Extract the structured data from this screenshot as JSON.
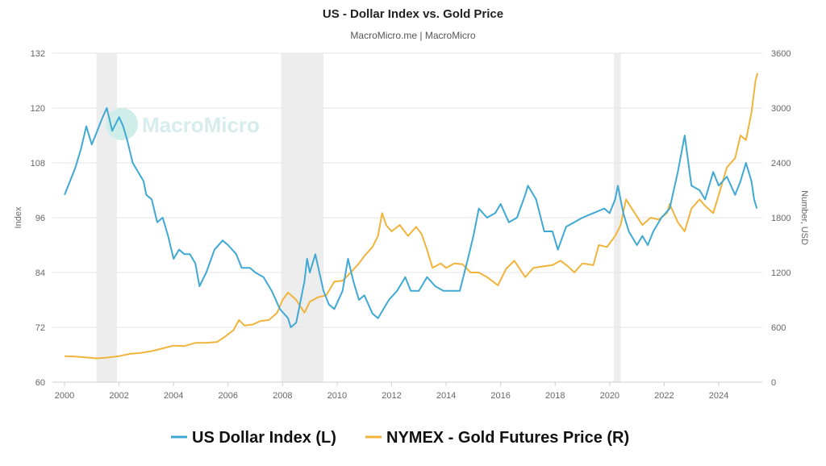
{
  "colors": {
    "usd": "#3fa9d4",
    "gold": "#f0b43c",
    "recession": "#ededed",
    "watermark_circle": "#cfeeea"
  },
  "watermark": "MacroMicro",
  "chart_data": {
    "type": "line",
    "title": "US - Dollar Index vs. Gold Price",
    "subtitle": "MacroMicro.me | MacroMicro",
    "xlim": [
      2000,
      2025.45
    ],
    "x_ticks": [
      2000,
      2002,
      2004,
      2006,
      2008,
      2010,
      2012,
      2014,
      2016,
      2018,
      2020,
      2022,
      2024
    ],
    "y_left": {
      "label": "Index",
      "lim": [
        60,
        132
      ],
      "ticks": [
        60,
        72,
        84,
        96,
        108,
        120,
        132
      ]
    },
    "y_right": {
      "label": "Number, USD",
      "lim": [
        0,
        3600
      ],
      "ticks": [
        0,
        600,
        1200,
        1800,
        2400,
        3000,
        3600
      ]
    },
    "grid": true,
    "legend_position": "bottom",
    "recessions": [
      [
        2001.17,
        2001.92
      ],
      [
        2007.95,
        2009.5
      ],
      [
        2020.15,
        2020.4
      ]
    ],
    "series": [
      {
        "name": "US Dollar Index (L)",
        "axis": "left",
        "points": [
          [
            2000.0,
            101
          ],
          [
            2000.2,
            104
          ],
          [
            2000.4,
            107
          ],
          [
            2000.6,
            111
          ],
          [
            2000.8,
            116
          ],
          [
            2001.0,
            112
          ],
          [
            2001.2,
            115
          ],
          [
            2001.4,
            118
          ],
          [
            2001.55,
            120
          ],
          [
            2001.75,
            115
          ],
          [
            2002.0,
            118
          ],
          [
            2002.15,
            116
          ],
          [
            2002.3,
            113
          ],
          [
            2002.5,
            108
          ],
          [
            2002.7,
            106
          ],
          [
            2002.9,
            104
          ],
          [
            2003.0,
            101
          ],
          [
            2003.2,
            100
          ],
          [
            2003.4,
            95
          ],
          [
            2003.6,
            96
          ],
          [
            2003.8,
            92
          ],
          [
            2004.0,
            87
          ],
          [
            2004.2,
            89
          ],
          [
            2004.4,
            88
          ],
          [
            2004.6,
            88
          ],
          [
            2004.8,
            86
          ],
          [
            2004.95,
            81
          ],
          [
            2005.2,
            84
          ],
          [
            2005.5,
            89
          ],
          [
            2005.8,
            91
          ],
          [
            2006.0,
            90
          ],
          [
            2006.3,
            88
          ],
          [
            2006.5,
            85
          ],
          [
            2006.8,
            85
          ],
          [
            2007.0,
            84
          ],
          [
            2007.3,
            83
          ],
          [
            2007.6,
            80
          ],
          [
            2007.9,
            76
          ],
          [
            2008.2,
            74
          ],
          [
            2008.3,
            72
          ],
          [
            2008.5,
            73
          ],
          [
            2008.8,
            82
          ],
          [
            2008.9,
            87
          ],
          [
            2009.0,
            84
          ],
          [
            2009.2,
            88
          ],
          [
            2009.5,
            80
          ],
          [
            2009.7,
            77
          ],
          [
            2009.9,
            76
          ],
          [
            2010.2,
            80
          ],
          [
            2010.4,
            87
          ],
          [
            2010.6,
            82
          ],
          [
            2010.8,
            78
          ],
          [
            2011.0,
            79
          ],
          [
            2011.3,
            75
          ],
          [
            2011.5,
            74
          ],
          [
            2011.7,
            76
          ],
          [
            2011.9,
            78
          ],
          [
            2012.2,
            80
          ],
          [
            2012.5,
            83
          ],
          [
            2012.7,
            80
          ],
          [
            2013.0,
            80
          ],
          [
            2013.3,
            83
          ],
          [
            2013.6,
            81
          ],
          [
            2013.9,
            80
          ],
          [
            2014.2,
            80
          ],
          [
            2014.5,
            80
          ],
          [
            2014.8,
            87
          ],
          [
            2015.0,
            92
          ],
          [
            2015.2,
            98
          ],
          [
            2015.5,
            96
          ],
          [
            2015.8,
            97
          ],
          [
            2016.0,
            99
          ],
          [
            2016.3,
            95
          ],
          [
            2016.6,
            96
          ],
          [
            2016.9,
            101
          ],
          [
            2017.0,
            103
          ],
          [
            2017.3,
            100
          ],
          [
            2017.6,
            93
          ],
          [
            2017.9,
            93
          ],
          [
            2018.1,
            89
          ],
          [
            2018.4,
            94
          ],
          [
            2018.7,
            95
          ],
          [
            2019.0,
            96
          ],
          [
            2019.4,
            97
          ],
          [
            2019.8,
            98
          ],
          [
            2020.0,
            97
          ],
          [
            2020.2,
            100
          ],
          [
            2020.3,
            103
          ],
          [
            2020.5,
            97
          ],
          [
            2020.7,
            93
          ],
          [
            2021.0,
            90
          ],
          [
            2021.2,
            92
          ],
          [
            2021.4,
            90
          ],
          [
            2021.6,
            93
          ],
          [
            2021.9,
            96
          ],
          [
            2022.2,
            98
          ],
          [
            2022.5,
            106
          ],
          [
            2022.75,
            114
          ],
          [
            2023.0,
            103
          ],
          [
            2023.3,
            102
          ],
          [
            2023.5,
            100
          ],
          [
            2023.8,
            106
          ],
          [
            2024.0,
            103
          ],
          [
            2024.3,
            105
          ],
          [
            2024.6,
            101
          ],
          [
            2024.8,
            104
          ],
          [
            2025.0,
            108
          ],
          [
            2025.2,
            104
          ],
          [
            2025.3,
            100
          ],
          [
            2025.4,
            98
          ]
        ]
      },
      {
        "name": "NYMEX - Gold Futures Price (R)",
        "axis": "right",
        "points": [
          [
            2000.0,
            285
          ],
          [
            2000.4,
            280
          ],
          [
            2000.8,
            270
          ],
          [
            2001.2,
            260
          ],
          [
            2001.6,
            270
          ],
          [
            2002.0,
            285
          ],
          [
            2002.4,
            310
          ],
          [
            2002.8,
            320
          ],
          [
            2003.2,
            340
          ],
          [
            2003.6,
            370
          ],
          [
            2004.0,
            400
          ],
          [
            2004.4,
            395
          ],
          [
            2004.8,
            430
          ],
          [
            2005.2,
            430
          ],
          [
            2005.6,
            440
          ],
          [
            2005.9,
            500
          ],
          [
            2006.2,
            570
          ],
          [
            2006.4,
            680
          ],
          [
            2006.6,
            620
          ],
          [
            2006.9,
            630
          ],
          [
            2007.2,
            670
          ],
          [
            2007.5,
            680
          ],
          [
            2007.8,
            760
          ],
          [
            2008.0,
            900
          ],
          [
            2008.2,
            980
          ],
          [
            2008.5,
            900
          ],
          [
            2008.8,
            760
          ],
          [
            2009.0,
            880
          ],
          [
            2009.3,
            930
          ],
          [
            2009.6,
            950
          ],
          [
            2009.9,
            1100
          ],
          [
            2010.2,
            1110
          ],
          [
            2010.5,
            1200
          ],
          [
            2010.8,
            1300
          ],
          [
            2011.0,
            1380
          ],
          [
            2011.3,
            1480
          ],
          [
            2011.5,
            1600
          ],
          [
            2011.65,
            1850
          ],
          [
            2011.8,
            1720
          ],
          [
            2012.0,
            1650
          ],
          [
            2012.3,
            1720
          ],
          [
            2012.6,
            1600
          ],
          [
            2012.9,
            1700
          ],
          [
            2013.1,
            1620
          ],
          [
            2013.3,
            1450
          ],
          [
            2013.5,
            1250
          ],
          [
            2013.8,
            1300
          ],
          [
            2014.0,
            1250
          ],
          [
            2014.3,
            1300
          ],
          [
            2014.6,
            1290
          ],
          [
            2014.9,
            1200
          ],
          [
            2015.2,
            1200
          ],
          [
            2015.5,
            1150
          ],
          [
            2015.9,
            1060
          ],
          [
            2016.2,
            1240
          ],
          [
            2016.5,
            1330
          ],
          [
            2016.9,
            1150
          ],
          [
            2017.2,
            1250
          ],
          [
            2017.6,
            1270
          ],
          [
            2017.9,
            1280
          ],
          [
            2018.2,
            1330
          ],
          [
            2018.5,
            1260
          ],
          [
            2018.7,
            1200
          ],
          [
            2019.0,
            1300
          ],
          [
            2019.4,
            1280
          ],
          [
            2019.6,
            1500
          ],
          [
            2019.9,
            1480
          ],
          [
            2020.2,
            1600
          ],
          [
            2020.4,
            1720
          ],
          [
            2020.6,
            2000
          ],
          [
            2020.9,
            1860
          ],
          [
            2021.2,
            1720
          ],
          [
            2021.5,
            1800
          ],
          [
            2021.8,
            1780
          ],
          [
            2022.1,
            1850
          ],
          [
            2022.2,
            1950
          ],
          [
            2022.5,
            1750
          ],
          [
            2022.75,
            1650
          ],
          [
            2023.0,
            1900
          ],
          [
            2023.3,
            2000
          ],
          [
            2023.5,
            1930
          ],
          [
            2023.8,
            1850
          ],
          [
            2024.0,
            2050
          ],
          [
            2024.3,
            2350
          ],
          [
            2024.6,
            2450
          ],
          [
            2024.8,
            2700
          ],
          [
            2025.0,
            2650
          ],
          [
            2025.2,
            2950
          ],
          [
            2025.35,
            3300
          ],
          [
            2025.42,
            3380
          ]
        ]
      }
    ]
  }
}
